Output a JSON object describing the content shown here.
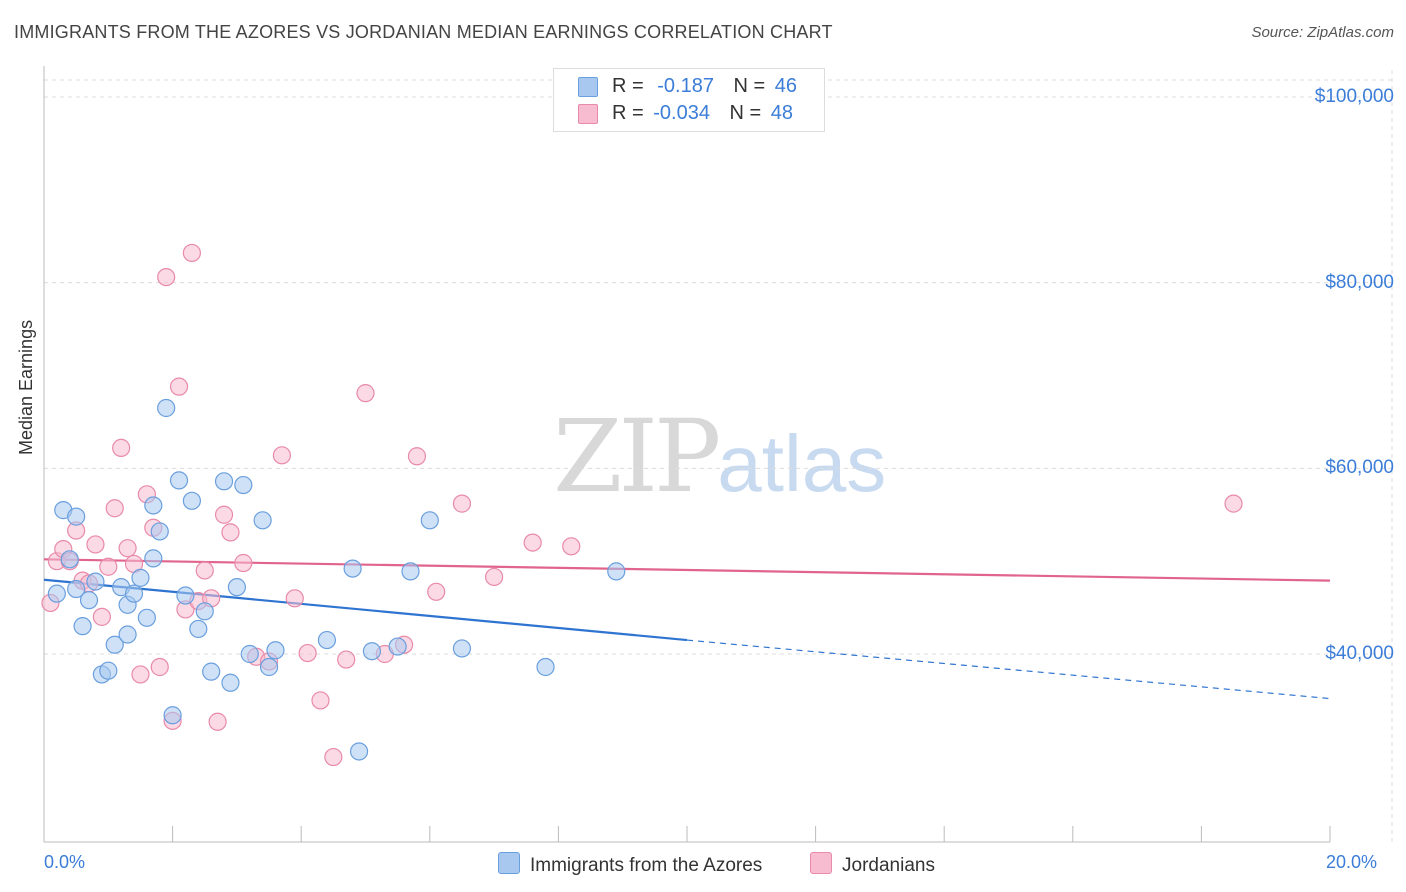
{
  "title": "IMMIGRANTS FROM THE AZORES VS JORDANIAN MEDIAN EARNINGS CORRELATION CHART",
  "source": "Source: ZipAtlas.com",
  "watermark": {
    "zip": "ZIP",
    "atlas": "atlas"
  },
  "stats": [
    {
      "r_label": "R =",
      "r_value": "-0.187",
      "n_label": "N =",
      "n_value": "46",
      "color": "#a8c8f0",
      "border": "#6a9fde"
    },
    {
      "r_label": "R =",
      "r_value": "-0.034",
      "n_label": "N =",
      "n_value": "48",
      "color": "#f8bcd0",
      "border": "#e88aa8"
    }
  ],
  "legend": [
    {
      "label": "Immigrants from the Azores",
      "color": "#a8c8f0",
      "border": "#6a9fde"
    },
    {
      "label": "Jordanians",
      "color": "#f8bcd0",
      "border": "#e88aa8"
    }
  ],
  "chart_data": {
    "type": "scatter",
    "title": "IMMIGRANTS FROM THE AZORES VS JORDANIAN MEDIAN EARNINGS CORRELATION CHART",
    "xlabel": "",
    "ylabel": "Median Earnings",
    "xlim": [
      0,
      20
    ],
    "ylim": [
      18000,
      102000
    ],
    "x_tick_labels": [
      "0.0%",
      "20.0%"
    ],
    "y_ticks": [
      {
        "value": 100000,
        "label": "$100,000"
      },
      {
        "value": 80000,
        "label": "$80,000"
      },
      {
        "value": 60000,
        "label": "$60,000"
      },
      {
        "value": 40000,
        "label": "$40,000"
      }
    ],
    "grid": true,
    "legend_position": "bottom-center",
    "series": [
      {
        "name": "Immigrants from the Azores",
        "color": "#6a9fde",
        "fill": "#a8c8f0",
        "x": [
          0.2,
          0.3,
          0.4,
          0.5,
          0.5,
          0.6,
          0.7,
          0.8,
          0.9,
          1.0,
          1.1,
          1.2,
          1.3,
          1.3,
          1.4,
          1.5,
          1.6,
          1.7,
          1.7,
          1.8,
          1.9,
          2.0,
          2.1,
          2.2,
          2.3,
          2.4,
          2.5,
          2.6,
          2.8,
          2.9,
          3.0,
          3.1,
          3.2,
          3.4,
          3.5,
          3.6,
          4.4,
          4.8,
          4.9,
          5.1,
          5.5,
          5.7,
          6.0,
          6.5,
          7.8,
          8.9
        ],
        "y": [
          46500,
          55500,
          50200,
          47000,
          54800,
          43000,
          45800,
          47800,
          37800,
          38200,
          41000,
          47200,
          42100,
          45300,
          46500,
          48200,
          43900,
          50300,
          56000,
          53200,
          66500,
          33400,
          58700,
          46300,
          56500,
          42700,
          44600,
          38100,
          58600,
          36900,
          47200,
          58200,
          40000,
          54400,
          38600,
          40400,
          41500,
          49200,
          29500,
          40300,
          40800,
          48900,
          54400,
          40600,
          38600,
          48900
        ]
      },
      {
        "name": "Jordanians",
        "color": "#e88aa8",
        "fill": "#f8bcd0",
        "x": [
          0.1,
          0.2,
          0.3,
          0.4,
          0.5,
          0.6,
          0.7,
          0.8,
          0.9,
          1.0,
          1.1,
          1.2,
          1.3,
          1.4,
          1.5,
          1.6,
          1.7,
          1.8,
          1.9,
          2.0,
          2.1,
          2.2,
          2.3,
          2.4,
          2.5,
          2.6,
          2.7,
          2.8,
          2.9,
          3.1,
          3.3,
          3.5,
          3.7,
          3.9,
          4.1,
          4.3,
          4.5,
          4.7,
          5.0,
          5.3,
          5.6,
          5.8,
          6.1,
          6.5,
          7.0,
          7.6,
          8.2,
          18.5
        ],
        "y": [
          45500,
          50000,
          51300,
          50000,
          53300,
          47900,
          47600,
          51800,
          44000,
          49400,
          55700,
          62200,
          51400,
          49700,
          37800,
          57200,
          53600,
          38600,
          80600,
          32800,
          68800,
          44800,
          83200,
          45700,
          49000,
          46000,
          32700,
          55000,
          53100,
          49800,
          39700,
          39200,
          61400,
          46000,
          40100,
          35000,
          28900,
          39400,
          68100,
          40000,
          41000,
          61300,
          46700,
          56200,
          48300,
          52000,
          51600,
          56200
        ]
      }
    ],
    "trend_lines": [
      {
        "series": "Immigrants from the Azores",
        "x_start": 0,
        "y_start": 48000,
        "x_solid_end": 10,
        "y_solid_end": 41500,
        "x_end": 20,
        "y_end": 35200
      },
      {
        "series": "Jordanians",
        "x_start": 0,
        "y_start": 50200,
        "x_end": 20,
        "y_end": 47900
      }
    ]
  }
}
